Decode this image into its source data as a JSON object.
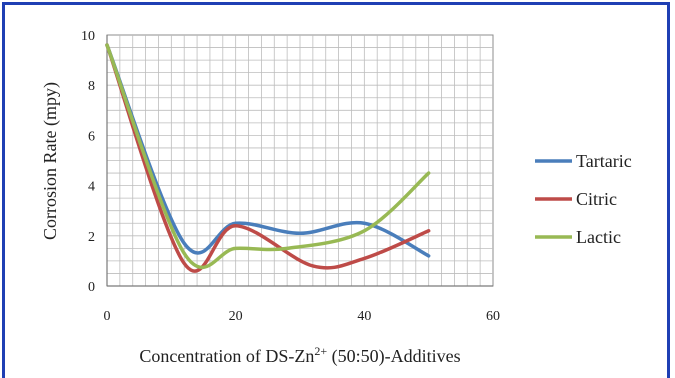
{
  "chart_data": {
    "type": "line",
    "xlabel": "Concentration  of DS-Zn2+ (50:50)-Additives",
    "xlabel_parts": {
      "before": "Concentration  of DS-Zn",
      "sup": "2+",
      "after": " (50:50)-Additives"
    },
    "ylabel": "Corrosion  Rate  (mpy)",
    "xlim": [
      0,
      60
    ],
    "ylim": [
      0,
      10
    ],
    "x_ticks": [
      0,
      20,
      40,
      60
    ],
    "y_ticks": [
      0,
      2,
      4,
      6,
      8,
      10
    ],
    "grid": true,
    "legend_position": "right",
    "series": [
      {
        "name": "Tartaric",
        "color": "#4a7ebb",
        "x": [
          0,
          12,
          20,
          30,
          40,
          50
        ],
        "y": [
          9.6,
          1.7,
          2.5,
          2.1,
          2.5,
          1.2
        ]
      },
      {
        "name": "Citric",
        "color": "#be4b48",
        "x": [
          0,
          12,
          20,
          32,
          40,
          50
        ],
        "y": [
          9.6,
          0.9,
          2.4,
          0.8,
          1.1,
          2.2
        ]
      },
      {
        "name": "Lactic",
        "color": "#98b954",
        "x": [
          0,
          12,
          20,
          28,
          40,
          50
        ],
        "y": [
          9.6,
          1.3,
          1.5,
          1.5,
          2.2,
          4.5
        ]
      }
    ]
  }
}
